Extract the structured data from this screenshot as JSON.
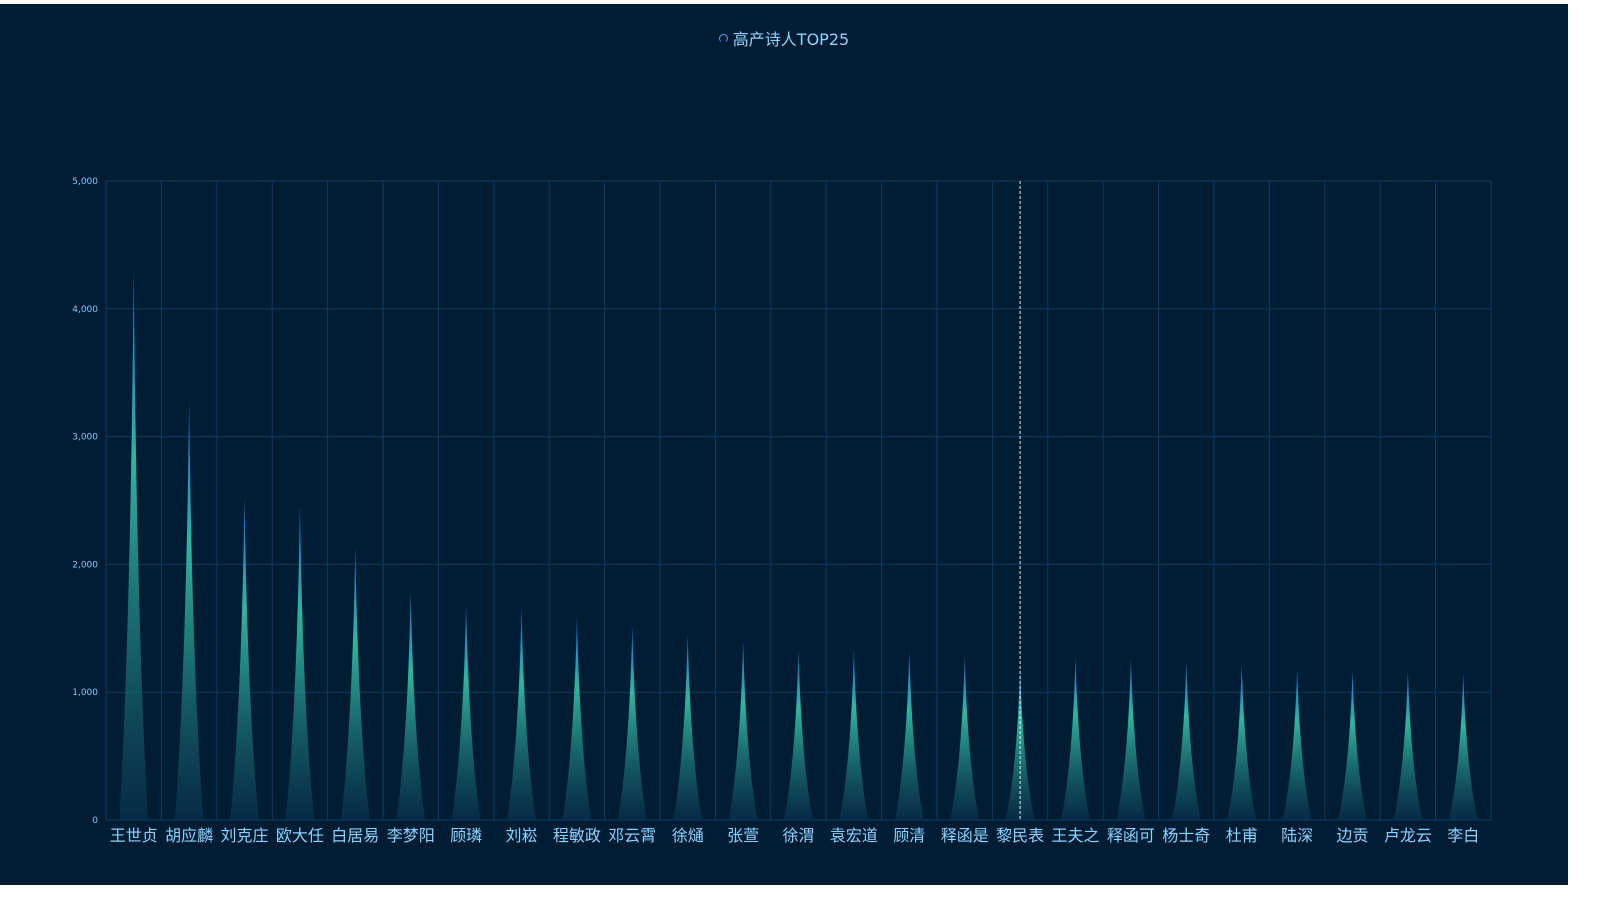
{
  "chart_data": {
    "type": "bar",
    "title": "高产诗人TOP25",
    "categories": [
      "王世贞",
      "胡应麟",
      "刘克庄",
      "欧大任",
      "白居易",
      "李梦阳",
      "顾璘",
      "刘崧",
      "程敏政",
      "邓云霄",
      "徐熥",
      "张萱",
      "徐渭",
      "袁宏道",
      "顾清",
      "释函是",
      "黎民表",
      "王夫之",
      "释函可",
      "杨士奇",
      "杜甫",
      "陆深",
      "边贡",
      "卢龙云",
      "李白"
    ],
    "values": [
      4330,
      3290,
      2540,
      2470,
      2140,
      1790,
      1690,
      1660,
      1590,
      1520,
      1450,
      1400,
      1330,
      1330,
      1320,
      1280,
      1190,
      1270,
      1260,
      1240,
      1220,
      1180,
      1170,
      1170,
      1140
    ],
    "ylim": [
      0,
      5000
    ],
    "yticks": [
      0,
      1000,
      2000,
      3000,
      4000,
      5000
    ],
    "ytick_labels": [
      "0",
      "1,000",
      "2,000",
      "3,000",
      "4,000",
      "5,000"
    ],
    "grid": true,
    "highlight_index": 16,
    "colors": {
      "background": "#001d33",
      "grid": "#0f3a63",
      "top": "#1a6fd6",
      "mid": "#2fb4a0",
      "bottom": "#0a3550",
      "guide": "#e6eef6"
    }
  }
}
